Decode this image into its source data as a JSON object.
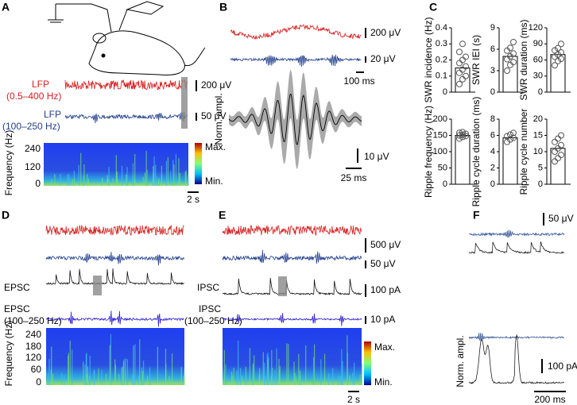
{
  "panels": {
    "A": {
      "letter": "A",
      "lfp1": "LFP",
      "lfp1_band": "(0.5–400 Hz)",
      "lfp2": "LFP",
      "lfp2_band": "(100–250 Hz)",
      "scale1": "200 μV",
      "scale2": "50 μV",
      "spec_ylabel": "Frequency (Hz)",
      "spec_ticks": [
        "240",
        "120",
        "0"
      ],
      "max": "Max.",
      "min": "Min.",
      "time": "2 s"
    },
    "B": {
      "letter": "B",
      "scale1": "200 μV",
      "scale2": "20 μV",
      "time1": "100 ms",
      "ylabel": "Norm. ampl.",
      "scale3": "10 μV",
      "time2": "25 ms"
    },
    "C": {
      "letter": "C"
    },
    "D": {
      "letter": "D",
      "epsc": "EPSC",
      "epsc2": "EPSC",
      "band": "(100–250 Hz)",
      "spec_ylabel": "Frequency (Hz)",
      "spec_ticks": [
        "240",
        "180",
        "120",
        "60",
        "0"
      ]
    },
    "E": {
      "letter": "E",
      "scale1": "500 μV",
      "scale2": "50 μV",
      "ipsc": "IPSC",
      "scale3": "100 pA",
      "ipsc2": "IPSC",
      "band": "(100–250 Hz)",
      "scale4": "10 pA",
      "max": "Max.",
      "min": "Min.",
      "time": "2 s"
    },
    "F": {
      "letter": "F",
      "scale1": "50 μV",
      "ylabel": "Norm. ampl.",
      "scale2": "100 pA",
      "time": "200 ms"
    }
  },
  "chart_data": [
    {
      "type": "bar",
      "ylabel": "SWR incidence (Hz)",
      "values": [
        0.15
      ],
      "points": [
        0.05,
        0.08,
        0.1,
        0.12,
        0.14,
        0.16,
        0.18,
        0.2,
        0.22,
        0.25,
        0.3
      ],
      "ylim": [
        0,
        0.4
      ],
      "yticks": [
        0,
        0.1,
        0.2,
        0.3,
        0.4
      ]
    },
    {
      "type": "bar",
      "ylabel": "SWR IEI (s)",
      "values": [
        5
      ],
      "points": [
        3,
        3.8,
        4.2,
        4.6,
        5,
        5.4,
        5.8,
        6.2,
        7
      ],
      "ylim": [
        0,
        9
      ],
      "yticks": [
        0,
        3,
        6,
        9
      ]
    },
    {
      "type": "bar",
      "ylabel": "SWR duration (ms)",
      "values": [
        70
      ],
      "points": [
        50,
        58,
        62,
        66,
        70,
        74,
        78,
        82,
        90
      ],
      "ylim": [
        0,
        120
      ],
      "yticks": [
        0,
        30,
        60,
        90,
        120
      ]
    },
    {
      "type": "bar",
      "ylabel": "Ripple frequency (Hz)",
      "values": [
        150
      ],
      "points": [
        140,
        145,
        148,
        150,
        152,
        155,
        158,
        160
      ],
      "ylim": [
        0,
        200
      ],
      "yticks": [
        0,
        50,
        100,
        150,
        200
      ]
    },
    {
      "type": "bar",
      "ylabel": "Ripple cycle duration (ms)",
      "values": [
        5.7
      ],
      "points": [
        5.2,
        5.5,
        5.7,
        5.9,
        6.1,
        6.3
      ],
      "ylim": [
        0,
        8
      ],
      "yticks": [
        0,
        2,
        4,
        6,
        8
      ]
    },
    {
      "type": "bar",
      "ylabel": "Ripple cycle number",
      "values": [
        11
      ],
      "points": [
        7,
        8,
        9,
        10,
        11,
        12,
        13,
        14,
        15
      ],
      "ylim": [
        0,
        20
      ],
      "yticks": [
        0,
        5,
        10,
        15,
        20
      ]
    }
  ]
}
